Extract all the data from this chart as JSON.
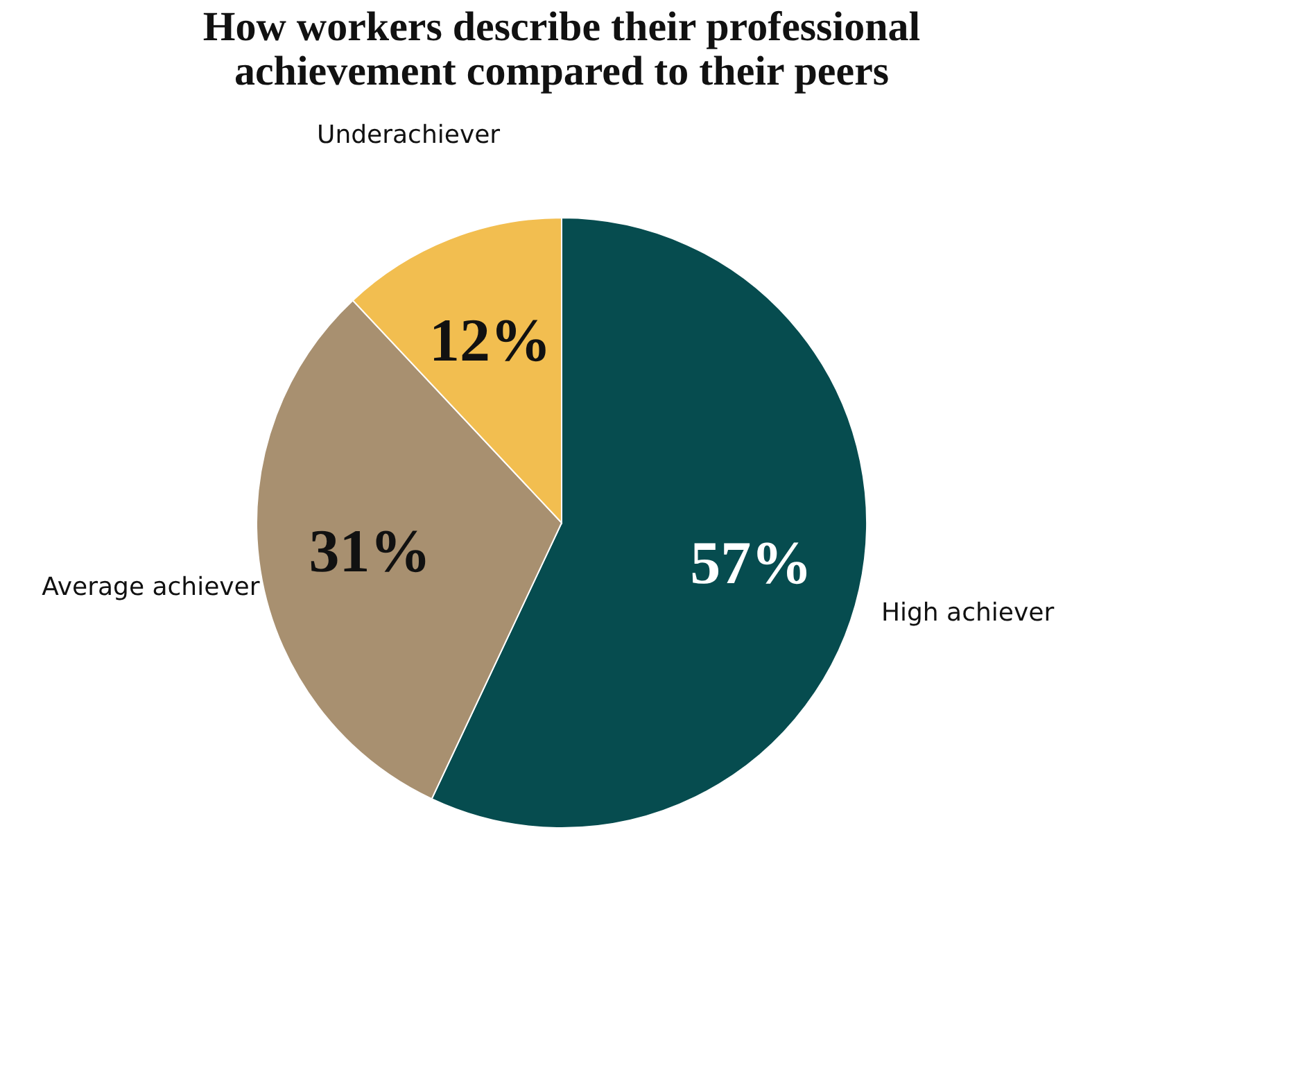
{
  "chart_data": {
    "type": "pie",
    "title": [
      "How workers describe their professional",
      "achievement compared to their peers"
    ],
    "categories": [
      "High achiever",
      "Average achiever",
      "Underachiever"
    ],
    "values": [
      57,
      31,
      12
    ],
    "colors": [
      "#064c4f",
      "#a89070",
      "#f2be50"
    ],
    "value_labels": [
      "57%",
      "31%",
      "12%"
    ],
    "legend": false
  }
}
